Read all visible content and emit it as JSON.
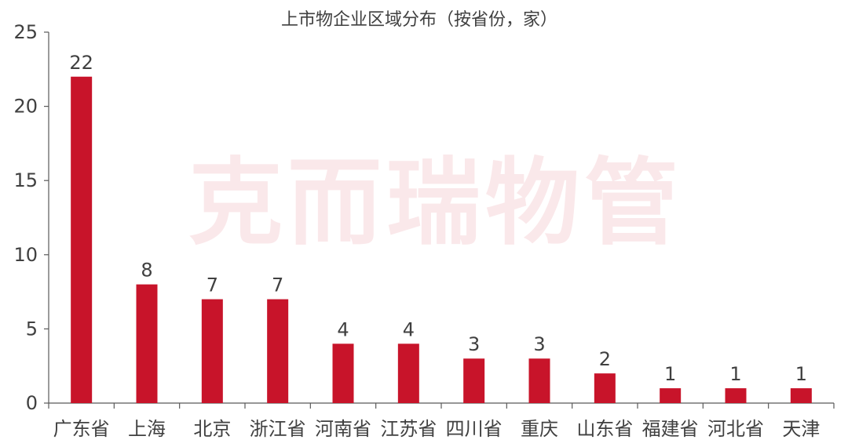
{
  "watermark": "克而瑞物管",
  "chart_data": {
    "type": "bar",
    "title": "上市物企业区域分布（按省份，家）",
    "xlabel": "",
    "ylabel": "",
    "categories": [
      "广东省",
      "上海",
      "北京",
      "浙江省",
      "河南省",
      "江苏省",
      "四川省",
      "重庆",
      "山东省",
      "福建省",
      "河北省",
      "天津"
    ],
    "values": [
      22,
      8,
      7,
      7,
      4,
      4,
      3,
      3,
      2,
      1,
      1,
      1
    ],
    "ylim": [
      0,
      25
    ],
    "yticks": [
      0,
      5,
      10,
      15,
      20,
      25
    ],
    "bar_color": "#c8142a",
    "grid": false,
    "legend": "none"
  }
}
